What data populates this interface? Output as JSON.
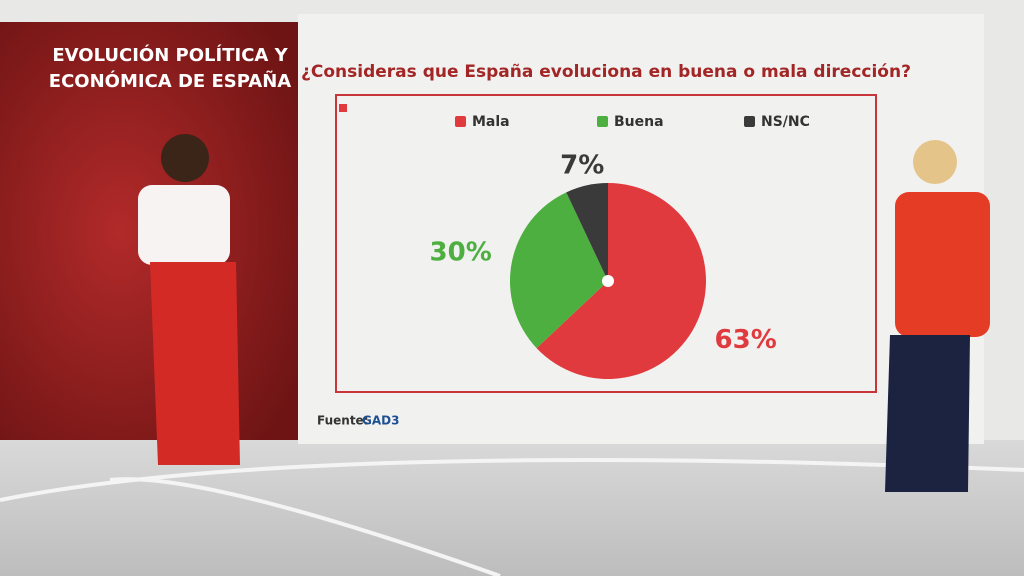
{
  "header": {
    "lines": [
      "EVOLUCIÓN POLÍTICA Y",
      "ECONÓMICA DE ESPAÑA"
    ]
  },
  "chart_data": {
    "type": "pie",
    "title": "¿Consideras que España evoluciona en buena o mala dirección?",
    "categories": [
      "Mala",
      "Buena",
      "NS/NC"
    ],
    "values": [
      63,
      30,
      7
    ],
    "value_labels": [
      "63%",
      "30%",
      "7%"
    ],
    "colors": [
      "#e03a3e",
      "#4caf3f",
      "#3a3a3a"
    ],
    "legend": "top"
  },
  "source": {
    "label": "Fuente:",
    "name": "GAD3"
  }
}
